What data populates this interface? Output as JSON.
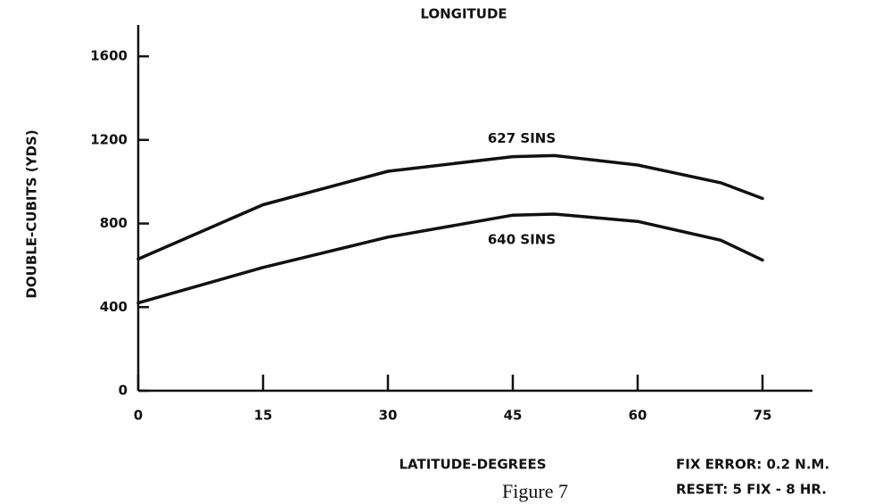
{
  "chart_data": {
    "type": "line",
    "title": "LONGITUDE",
    "x_label": "LATITUDE-DEGREES",
    "y_label": "DOUBLE-CUBITS (YDS)",
    "x": [
      0,
      15,
      30,
      45,
      50,
      60,
      70,
      75
    ],
    "series": [
      {
        "name": "627 SINS",
        "color": "#111111",
        "values": [
          630,
          890,
          1050,
          1120,
          1125,
          1080,
          995,
          920
        ]
      },
      {
        "name": "640 SINS",
        "color": "#111111",
        "values": [
          420,
          590,
          735,
          840,
          845,
          810,
          720,
          625
        ]
      }
    ],
    "xlim": [
      0,
      81
    ],
    "ylim": [
      0,
      1750
    ],
    "xticks": [
      0,
      15,
      30,
      45,
      60,
      75
    ],
    "yticks": [
      0,
      400,
      800,
      1200,
      1600
    ],
    "annotations": [
      "FIX ERROR: 0.2 N.M.",
      "RESET: 5 FIX - 8 HR."
    ],
    "caption": "Figure 7"
  }
}
